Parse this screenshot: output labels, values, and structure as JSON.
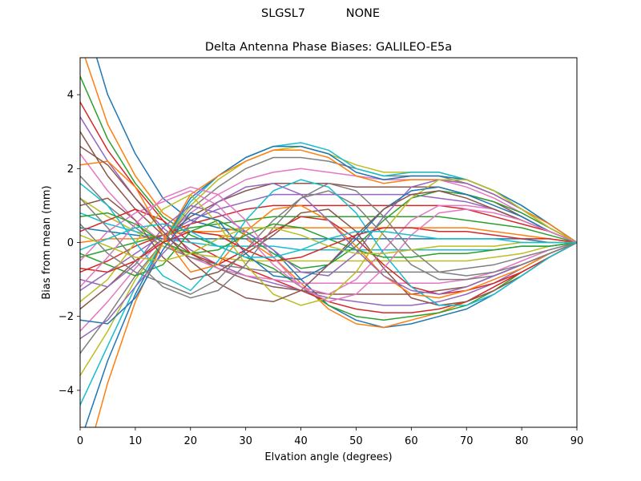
{
  "figure": {
    "suptitle": "SLGSL7           NONE"
  },
  "chart_data": {
    "type": "line",
    "title": "Delta Antenna Phase Biases: GALILEO-E5a",
    "xlabel": "Elvation angle (degrees)",
    "ylabel": "Bias from mean (mm)",
    "xlim": [
      0,
      90
    ],
    "ylim": [
      -5,
      5
    ],
    "xticks": [
      0,
      10,
      20,
      30,
      40,
      50,
      60,
      70,
      80,
      90
    ],
    "yticks": [
      -4,
      -2,
      0,
      2,
      4
    ],
    "xtick_labels": [
      "0",
      "10",
      "20",
      "30",
      "40",
      "50",
      "60",
      "70",
      "80",
      "90"
    ],
    "ytick_labels": [
      "−4",
      "−2",
      "0",
      "2",
      "4"
    ],
    "grid": false,
    "legend": "none",
    "x": [
      0,
      5,
      10,
      15,
      20,
      25,
      30,
      35,
      40,
      45,
      50,
      55,
      60,
      65,
      70,
      75,
      80,
      85,
      90
    ],
    "series_colors": [
      "#1f77b4",
      "#ff7f0e",
      "#2ca02c",
      "#d62728",
      "#9467bd",
      "#8c564b",
      "#e377c2",
      "#7f7f7f",
      "#bcbd22",
      "#17becf"
    ],
    "series": [
      {
        "values": [
          6.5,
          4.0,
          2.4,
          1.2,
          0.6,
          0.4,
          0.3,
          -0.2,
          -1.0,
          -1.7,
          -2.1,
          -2.3,
          -2.2,
          -2.0,
          -1.8,
          -1.4,
          -0.9,
          -0.4,
          0.0
        ]
      },
      {
        "values": [
          5.4,
          3.2,
          1.8,
          0.8,
          0.3,
          0.2,
          0.1,
          -0.4,
          -1.1,
          -1.8,
          -2.2,
          -2.3,
          -2.1,
          -1.9,
          -1.6,
          -1.3,
          -0.9,
          -0.4,
          0.0
        ]
      },
      {
        "values": [
          4.5,
          2.8,
          1.6,
          0.7,
          0.2,
          -0.1,
          -0.4,
          -0.7,
          -1.2,
          -1.7,
          -2.0,
          -2.1,
          -2.0,
          -1.9,
          -1.7,
          -1.3,
          -0.8,
          -0.4,
          0.0
        ]
      },
      {
        "values": [
          3.8,
          2.5,
          1.5,
          0.6,
          0.0,
          -0.4,
          -0.7,
          -1.0,
          -1.3,
          -1.6,
          -1.8,
          -1.9,
          -1.9,
          -1.8,
          -1.6,
          -1.2,
          -0.8,
          -0.4,
          0.0
        ]
      },
      {
        "values": [
          3.4,
          2.2,
          1.2,
          0.4,
          -0.2,
          -0.6,
          -0.9,
          -1.1,
          -1.3,
          -1.5,
          -1.6,
          -1.7,
          -1.7,
          -1.6,
          -1.4,
          -1.1,
          -0.7,
          -0.3,
          0.0
        ]
      },
      {
        "values": [
          3.0,
          1.8,
          0.9,
          0.2,
          -0.3,
          -0.7,
          -1.0,
          -1.2,
          -1.3,
          -1.4,
          -1.4,
          -1.4,
          -1.4,
          -1.3,
          -1.2,
          -0.9,
          -0.6,
          -0.3,
          0.0
        ]
      },
      {
        "values": [
          2.4,
          1.4,
          0.6,
          0.0,
          -0.4,
          -0.7,
          -0.9,
          -1.0,
          -1.1,
          -1.1,
          -1.1,
          -1.1,
          -1.1,
          -1.1,
          -1.0,
          -0.8,
          -0.5,
          -0.2,
          0.0
        ]
      },
      {
        "values": [
          1.8,
          1.0,
          0.4,
          -0.1,
          -0.4,
          -0.6,
          -0.7,
          -0.8,
          -0.8,
          -0.8,
          -0.8,
          -0.8,
          -0.8,
          -0.8,
          -0.7,
          -0.6,
          -0.4,
          -0.2,
          0.0
        ]
      },
      {
        "values": [
          1.2,
          0.7,
          0.3,
          -0.1,
          -0.3,
          -0.4,
          -0.5,
          -0.5,
          -0.5,
          -0.5,
          -0.5,
          -0.5,
          -0.5,
          -0.5,
          -0.5,
          -0.4,
          -0.3,
          -0.1,
          0.0
        ]
      },
      {
        "values": [
          0.8,
          0.5,
          0.3,
          0.1,
          0.0,
          -0.1,
          -0.1,
          -0.1,
          -0.2,
          -0.2,
          -0.2,
          -0.2,
          -0.2,
          -0.2,
          -0.2,
          -0.2,
          -0.1,
          -0.1,
          0.0
        ]
      },
      {
        "values": [
          0.4,
          0.3,
          0.2,
          0.1,
          0.1,
          0.1,
          0.1,
          0.1,
          0.1,
          0.1,
          0.1,
          0.1,
          0.1,
          0.1,
          0.1,
          0.1,
          0.1,
          0.0,
          0.0
        ]
      },
      {
        "values": [
          0.0,
          0.1,
          0.1,
          0.2,
          0.3,
          0.3,
          0.4,
          0.4,
          0.4,
          0.4,
          0.4,
          0.4,
          0.4,
          0.4,
          0.4,
          0.3,
          0.2,
          0.1,
          0.0
        ]
      },
      {
        "values": [
          -0.4,
          -0.2,
          0.0,
          0.2,
          0.4,
          0.5,
          0.6,
          0.7,
          0.7,
          0.7,
          0.7,
          0.7,
          0.7,
          0.7,
          0.6,
          0.5,
          0.4,
          0.2,
          0.0
        ]
      },
      {
        "values": [
          -0.8,
          -0.5,
          -0.1,
          0.2,
          0.5,
          0.7,
          0.9,
          1.0,
          1.0,
          1.0,
          1.0,
          1.0,
          1.0,
          1.0,
          0.9,
          0.7,
          0.5,
          0.3,
          0.0
        ]
      },
      {
        "values": [
          -1.3,
          -0.8,
          -0.3,
          0.2,
          0.6,
          0.9,
          1.1,
          1.3,
          1.3,
          1.3,
          1.3,
          1.3,
          1.3,
          1.2,
          1.1,
          0.9,
          0.6,
          0.3,
          0.0
        ]
      },
      {
        "values": [
          -1.8,
          -1.2,
          -0.5,
          0.1,
          0.7,
          1.1,
          1.4,
          1.6,
          1.6,
          1.6,
          1.5,
          1.5,
          1.5,
          1.5,
          1.3,
          1.1,
          0.7,
          0.3,
          0.0
        ]
      },
      {
        "values": [
          -2.4,
          -1.6,
          -0.7,
          0.1,
          0.8,
          1.3,
          1.7,
          1.9,
          2.0,
          1.9,
          1.8,
          1.7,
          1.7,
          1.7,
          1.5,
          1.2,
          0.8,
          0.4,
          0.0
        ]
      },
      {
        "values": [
          -3.0,
          -2.0,
          -0.9,
          0.0,
          0.9,
          1.5,
          2.0,
          2.3,
          2.3,
          2.2,
          2.0,
          1.8,
          1.8,
          1.8,
          1.6,
          1.3,
          0.9,
          0.4,
          0.0
        ]
      },
      {
        "values": [
          -3.6,
          -2.4,
          -1.0,
          0.0,
          1.0,
          1.7,
          2.2,
          2.5,
          2.6,
          2.4,
          2.1,
          1.9,
          1.9,
          1.9,
          1.7,
          1.4,
          0.9,
          0.5,
          0.0
        ]
      },
      {
        "values": [
          -4.4,
          -2.8,
          -1.2,
          0.0,
          1.1,
          1.8,
          2.3,
          2.6,
          2.7,
          2.5,
          2.0,
          1.8,
          1.9,
          1.9,
          1.7,
          1.4,
          1.0,
          0.5,
          0.0
        ]
      },
      {
        "values": [
          -5.4,
          -3.2,
          -1.4,
          0.0,
          1.2,
          1.8,
          2.3,
          2.6,
          2.6,
          2.4,
          1.9,
          1.7,
          1.8,
          1.8,
          1.7,
          1.4,
          1.0,
          0.5,
          0.0
        ]
      },
      {
        "values": [
          -6.5,
          -3.8,
          -1.6,
          0.0,
          1.3,
          1.8,
          2.2,
          2.5,
          2.5,
          2.3,
          1.8,
          1.6,
          1.7,
          1.7,
          1.6,
          1.3,
          0.9,
          0.5,
          0.0
        ]
      },
      {
        "values": [
          -0.3,
          -0.6,
          -0.9,
          -0.6,
          0.3,
          0.6,
          0.2,
          -0.3,
          -0.7,
          -0.6,
          -0.1,
          0.6,
          1.2,
          1.4,
          1.3,
          1.1,
          0.8,
          0.4,
          0.0
        ]
      },
      {
        "values": [
          0.3,
          0.6,
          0.9,
          0.6,
          -0.3,
          -0.6,
          -0.2,
          0.3,
          0.7,
          0.6,
          0.1,
          -0.6,
          -1.2,
          -1.4,
          -1.3,
          -1.1,
          -0.8,
          -0.4,
          0.0
        ]
      },
      {
        "values": [
          -1.0,
          -1.2,
          -0.6,
          0.4,
          1.0,
          0.8,
          0.3,
          -0.2,
          -0.8,
          -0.9,
          -0.3,
          0.7,
          1.5,
          1.7,
          1.6,
          1.3,
          0.9,
          0.4,
          0.0
        ]
      },
      {
        "values": [
          1.0,
          1.2,
          0.6,
          -0.4,
          -1.0,
          -0.8,
          -0.3,
          0.2,
          0.8,
          0.9,
          0.3,
          -0.7,
          -1.5,
          -1.7,
          -1.6,
          -1.3,
          -0.9,
          -0.4,
          0.0
        ]
      },
      {
        "values": [
          -0.5,
          0.3,
          0.8,
          1.1,
          1.4,
          1.0,
          0.2,
          -0.6,
          -1.2,
          -1.4,
          -1.0,
          -0.2,
          0.6,
          1.0,
          1.0,
          0.9,
          0.6,
          0.3,
          0.0
        ]
      },
      {
        "values": [
          0.5,
          -0.3,
          -0.8,
          -1.1,
          -1.4,
          -1.0,
          -0.2,
          0.6,
          1.2,
          1.4,
          1.0,
          0.2,
          -0.6,
          -1.0,
          -1.0,
          -0.9,
          -0.6,
          -0.3,
          0.0
        ]
      },
      {
        "values": [
          -1.6,
          -1.0,
          0.0,
          0.9,
          1.3,
          0.5,
          -0.6,
          -1.4,
          -1.7,
          -1.5,
          -0.8,
          0.3,
          1.2,
          1.7,
          1.7,
          1.4,
          0.9,
          0.4,
          0.0
        ]
      },
      {
        "values": [
          1.6,
          1.0,
          0.0,
          -0.9,
          -1.3,
          -0.5,
          0.6,
          1.4,
          1.7,
          1.5,
          0.8,
          -0.3,
          -1.2,
          -1.7,
          -1.7,
          -1.4,
          -0.9,
          -0.4,
          0.0
        ]
      },
      {
        "values": [
          -2.1,
          -2.2,
          -1.5,
          -0.2,
          0.8,
          0.6,
          -0.3,
          -0.9,
          -1.0,
          -0.6,
          0.1,
          0.9,
          1.4,
          1.5,
          1.3,
          1.0,
          0.7,
          0.3,
          0.0
        ]
      },
      {
        "values": [
          2.1,
          2.2,
          1.5,
          0.2,
          -0.8,
          -0.6,
          0.3,
          0.9,
          1.0,
          0.6,
          -0.1,
          -0.9,
          -1.4,
          -1.5,
          -1.3,
          -1.0,
          -0.7,
          -0.3,
          0.0
        ]
      },
      {
        "values": [
          0.7,
          0.8,
          0.5,
          0.0,
          -0.3,
          -0.2,
          0.2,
          0.5,
          0.4,
          0.1,
          -0.2,
          -0.4,
          -0.4,
          -0.3,
          -0.3,
          -0.2,
          -0.1,
          -0.1,
          0.0
        ]
      },
      {
        "values": [
          -0.7,
          -0.8,
          -0.5,
          0.0,
          0.3,
          0.2,
          -0.2,
          -0.5,
          -0.4,
          -0.1,
          0.2,
          0.4,
          0.4,
          0.3,
          0.3,
          0.2,
          0.1,
          0.1,
          0.0
        ]
      },
      {
        "values": [
          -2.6,
          -2.1,
          -1.2,
          -0.3,
          0.5,
          1.1,
          1.5,
          1.6,
          1.3,
          0.6,
          -0.2,
          -0.9,
          -1.3,
          -1.4,
          -1.2,
          -0.9,
          -0.6,
          -0.3,
          0.0
        ]
      },
      {
        "values": [
          2.6,
          2.1,
          1.2,
          0.3,
          -0.5,
          -1.1,
          -1.5,
          -1.6,
          -1.3,
          -0.6,
          0.2,
          0.9,
          1.3,
          1.4,
          1.2,
          0.9,
          0.6,
          0.3,
          0.0
        ]
      },
      {
        "values": [
          -1.2,
          -0.4,
          0.5,
          1.2,
          1.5,
          1.3,
          0.6,
          -0.4,
          -1.2,
          -1.6,
          -1.4,
          -0.7,
          0.2,
          0.8,
          0.9,
          0.8,
          0.6,
          0.3,
          0.0
        ]
      },
      {
        "values": [
          1.2,
          0.4,
          -0.5,
          -1.2,
          -1.5,
          -1.3,
          -0.6,
          0.4,
          1.2,
          1.6,
          1.4,
          0.7,
          -0.2,
          -0.8,
          -0.9,
          -0.8,
          -0.6,
          -0.3,
          0.0
        ]
      },
      {
        "values": [
          0.2,
          -0.1,
          -0.4,
          -0.5,
          -0.3,
          0.1,
          0.4,
          0.4,
          0.2,
          -0.1,
          -0.3,
          -0.3,
          -0.2,
          -0.1,
          -0.1,
          -0.1,
          0.0,
          0.0,
          0.0
        ]
      },
      {
        "values": [
          -0.2,
          0.1,
          0.4,
          0.5,
          0.3,
          -0.1,
          -0.4,
          -0.4,
          -0.2,
          0.1,
          0.3,
          0.3,
          0.2,
          0.1,
          0.1,
          0.1,
          0.0,
          0.0,
          0.0
        ]
      }
    ]
  }
}
